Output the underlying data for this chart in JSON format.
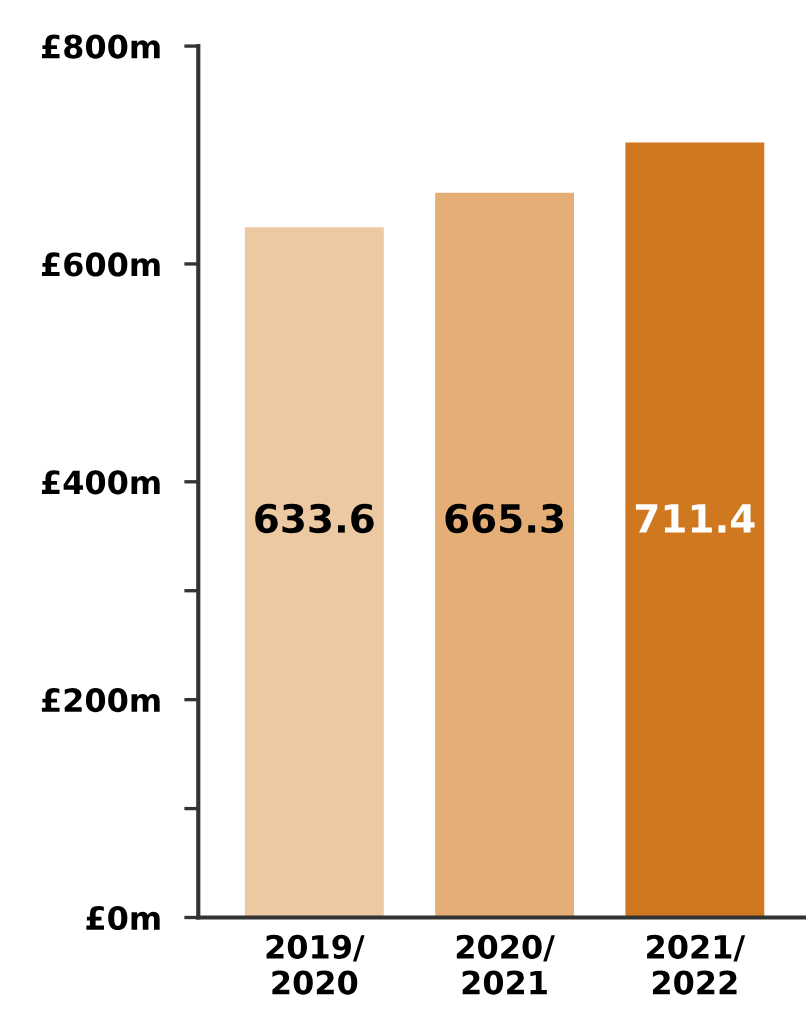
{
  "chart_data": {
    "type": "bar",
    "categories": [
      "2019/\n2020",
      "2020/\n2021",
      "2021/\n2022"
    ],
    "values": [
      633.6,
      665.3,
      711.4
    ],
    "colors": [
      "#ecc9a2",
      "#e5ae77",
      "#d07820"
    ],
    "ylim": [
      0,
      800
    ],
    "yticks": [
      {
        "value": 0,
        "label": "£0m"
      },
      {
        "value": 100,
        "label": null
      },
      {
        "value": 200,
        "label": "£200m"
      },
      {
        "value": 300,
        "label": null
      },
      {
        "value": 400,
        "label": "£400m"
      },
      {
        "value": 600,
        "label": "£600m"
      },
      {
        "value": 800,
        "label": "£800m"
      }
    ],
    "data_labels": true,
    "grid": false,
    "legend": false
  }
}
